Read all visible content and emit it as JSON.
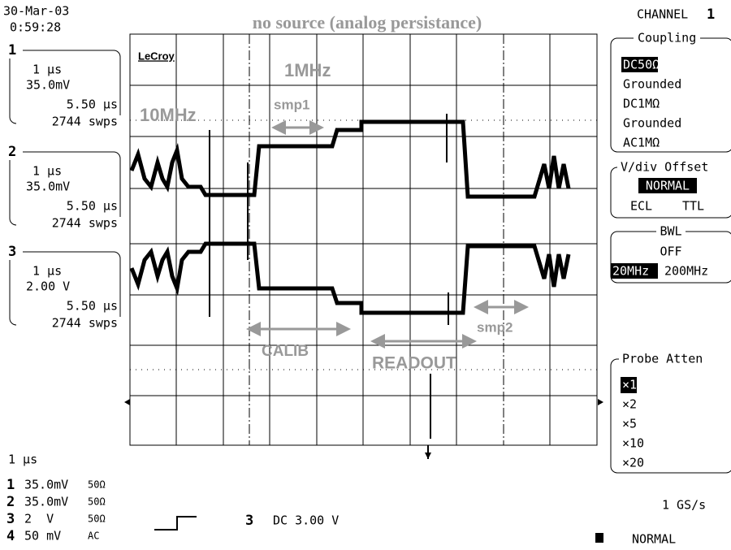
{
  "header": {
    "date": "30-Mar-03",
    "time": "0:59:28",
    "title": "no source  (analog persistance)",
    "channel": "CHANNEL",
    "channel_number": "1"
  },
  "traces": [
    {
      "id": "1",
      "timebase": "1 µs",
      "vdiv": "35.0mV",
      "delay": "5.50 µs",
      "sweeps": "2744 swps"
    },
    {
      "id": "2",
      "timebase": "1 µs",
      "vdiv": "35.0mV",
      "delay": "5.50 µs",
      "sweeps": "2744 swps"
    },
    {
      "id": "3",
      "timebase": "1 µs",
      "vdiv": "2.00 V",
      "delay": "5.50 µs",
      "sweeps": "2744 swps"
    }
  ],
  "screen": {
    "brand": "LeCroy",
    "annotations": [
      "1MHz",
      "10MHz",
      "smp1",
      "CALIB",
      "READOUT",
      "smp2"
    ]
  },
  "menu": {
    "coupling": {
      "title": "Coupling",
      "options": [
        "DC50Ω",
        "Grounded",
        "DC1MΩ",
        "Grounded",
        "AC1MΩ"
      ]
    },
    "offset": {
      "title": "V/div Offset",
      "options": [
        "NORMAL",
        "ECL",
        "TTL"
      ]
    },
    "bwl": {
      "title": "BWL",
      "options": [
        "OFF",
        "20MHz",
        "200MHz"
      ]
    },
    "probe": {
      "title": "Probe Atten",
      "options": [
        "×1",
        "×2",
        "×5",
        "×10",
        "×20"
      ]
    }
  },
  "footer": {
    "timebase": "1 µs",
    "channels": [
      {
        "id": "1",
        "scale": "35.0mV",
        "coupling": "50Ω"
      },
      {
        "id": "2",
        "scale": "35.0mV",
        "coupling": "50Ω"
      },
      {
        "id": "3",
        "scale": "2  V",
        "coupling": "50Ω"
      },
      {
        "id": "4",
        "scale": "50 mV",
        "coupling": "AC"
      }
    ],
    "trigger_source": "3",
    "trigger_level": "DC 3.00 V",
    "sample_rate": "1 GS/s",
    "mode": "NORMAL"
  }
}
